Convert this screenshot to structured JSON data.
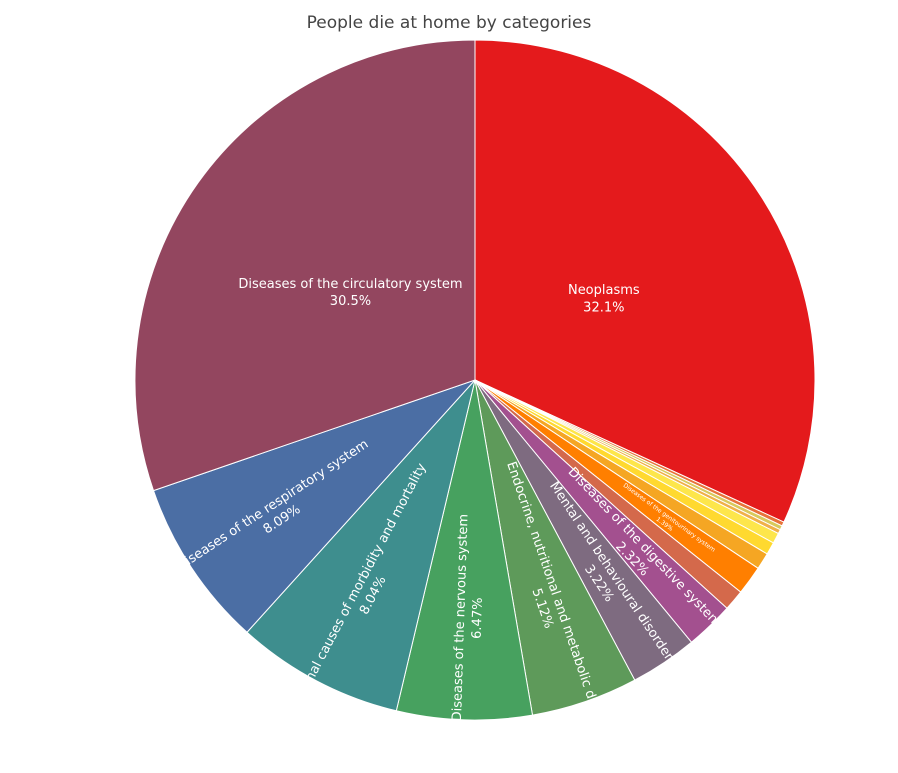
{
  "chart_data": {
    "type": "pie",
    "title": "People die at home by categories",
    "direction": "clockwise",
    "start": "12 o'clock",
    "slices": [
      {
        "label": "Neoplasms",
        "value": 32.1,
        "color": "#e41a1c",
        "show_label": true
      },
      {
        "label": "",
        "value": 0.2,
        "color": "#e8733a",
        "show_label": false
      },
      {
        "label": "",
        "value": 0.2,
        "color": "#d9c95c",
        "show_label": false
      },
      {
        "label": "",
        "value": 0.2,
        "color": "#f0b04a",
        "show_label": false
      },
      {
        "label": "",
        "value": 0.5,
        "color": "#fde64b",
        "show_label": false
      },
      {
        "label": "",
        "value": 0.6,
        "color": "#ffd92f",
        "show_label": false
      },
      {
        "label": "",
        "value": 0.8,
        "color": "#f5a623",
        "show_label": false
      },
      {
        "label": "Diseases of the genitourinary system",
        "value": 1.39,
        "color": "#ff7f00",
        "show_label": true,
        "small": true
      },
      {
        "label": "",
        "value": 1.0,
        "color": "#d4694b",
        "show_label": false
      },
      {
        "label": "Diseases of the digestive system",
        "value": 2.32,
        "color": "#a3508f",
        "show_label": true
      },
      {
        "label": "Mental and behavioural disorders",
        "value": 3.22,
        "color": "#7e6b80",
        "show_label": true
      },
      {
        "label": "Endocrine, nutritional and metabolic diseases",
        "value": 5.12,
        "color": "#5e9a5a",
        "show_label": true
      },
      {
        "label": "Diseases of the nervous system",
        "value": 6.47,
        "color": "#47a15f",
        "show_label": true
      },
      {
        "label": "External causes of morbidity and mortality",
        "value": 8.04,
        "color": "#3e8e8e",
        "show_label": true
      },
      {
        "label": "Diseases of the respiratory system",
        "value": 8.09,
        "color": "#4b6ea4",
        "show_label": true
      },
      {
        "label": "Diseases of the circulatory system",
        "value": 30.5,
        "color": "#93465f",
        "show_label": true
      }
    ]
  }
}
